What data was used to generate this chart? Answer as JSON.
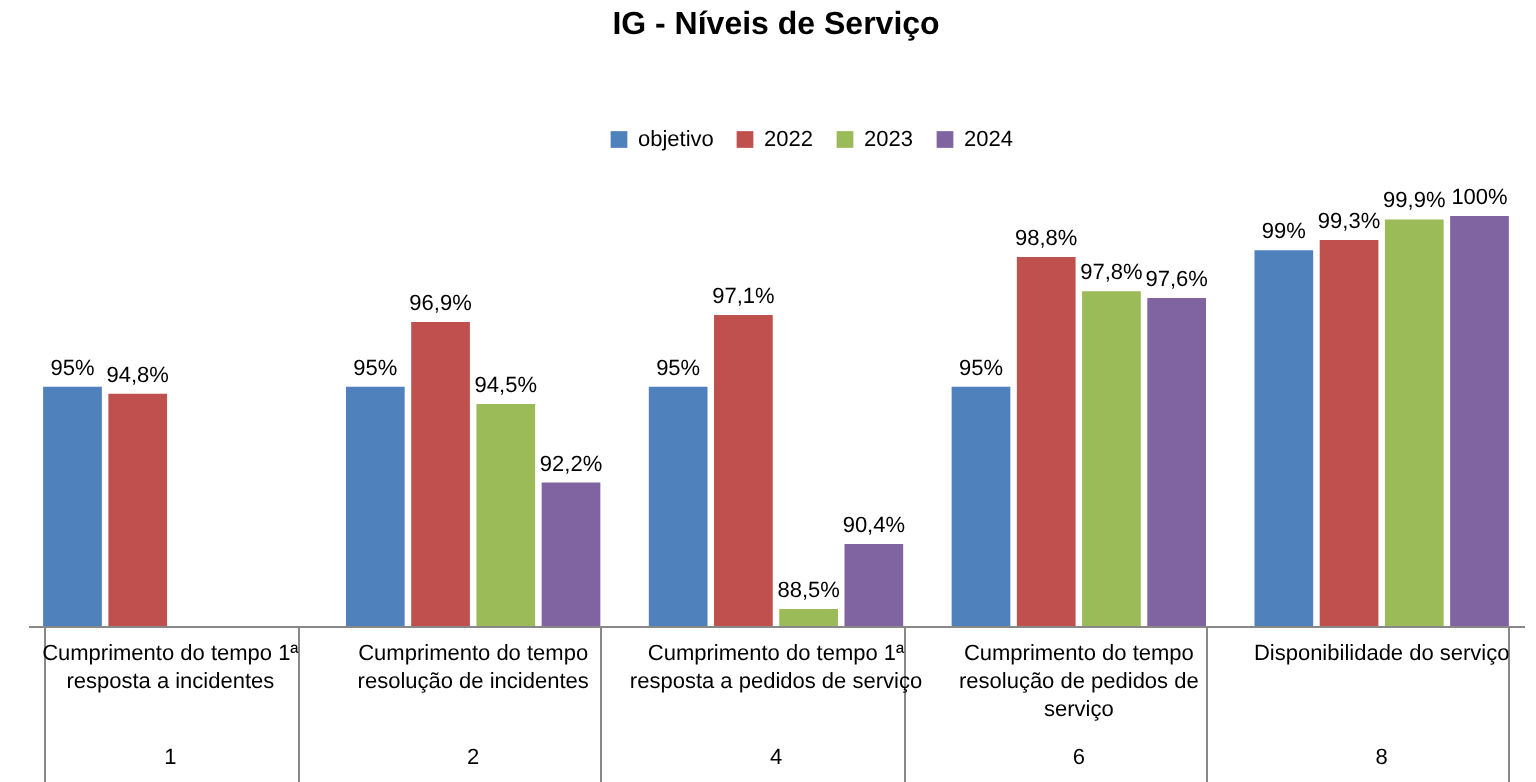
{
  "chart_data": {
    "type": "bar",
    "title": "IG - Níveis de Serviço",
    "categories": [
      "Cumprimento do tempo 1ª resposta a incidentes",
      "Cumprimento do tempo resolução de incidentes",
      "Cumprimento do tempo 1ª resposta a pedidos de serviço",
      "Cumprimento do tempo resolução de pedidos de serviço",
      "Disponibilidade do serviço"
    ],
    "annotations": [
      "1",
      "2",
      "4",
      "6",
      "8"
    ],
    "ylim": [
      88,
      100
    ],
    "series": [
      {
        "name": "objetivo",
        "color": "#4f81bd",
        "values": [
          95,
          95,
          95,
          95,
          99
        ],
        "value_labels": [
          "95%",
          "95%",
          "95%",
          "95%",
          "99%"
        ]
      },
      {
        "name": "2022",
        "color": "#c0504d",
        "values": [
          94.8,
          96.9,
          97.1,
          98.8,
          99.3
        ],
        "value_labels": [
          "94,8%",
          "96,9%",
          "97,1%",
          "98,8%",
          "99,3%"
        ]
      },
      {
        "name": "2023",
        "color": "#9bbb59",
        "values": [
          null,
          94.5,
          88.5,
          97.8,
          99.9
        ],
        "value_labels": [
          null,
          "94,5%",
          "88,5%",
          "97,8%",
          "99,9%"
        ]
      },
      {
        "name": "2024",
        "color": "#8064a2",
        "values": [
          null,
          92.2,
          90.4,
          97.6,
          100
        ],
        "value_labels": [
          null,
          "92,2%",
          "90,4%",
          "97,6%",
          "100%"
        ]
      }
    ],
    "legend": "top",
    "grid": false
  }
}
